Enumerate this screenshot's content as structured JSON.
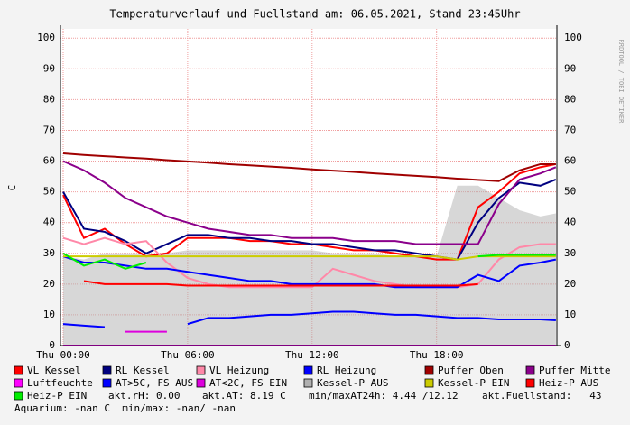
{
  "chart_data": {
    "type": "line",
    "title": "Temperaturverlauf und Fuellstand am: 06.05.2021, Stand 23:45Uhr",
    "ylabel": "C",
    "watermark": "RRDTOOL / TOBI OETIKER",
    "x": [
      0,
      1,
      2,
      3,
      4,
      5,
      6,
      7,
      8,
      9,
      10,
      11,
      12,
      13,
      14,
      15,
      16,
      17,
      18,
      19,
      20,
      21,
      22,
      23,
      23.75
    ],
    "xlim": [
      -0.13,
      23.8
    ],
    "xticks": [
      {
        "value": 0,
        "label": "Thu 00:00"
      },
      {
        "value": 6,
        "label": "Thu 06:00"
      },
      {
        "value": 12,
        "label": "Thu 12:00"
      },
      {
        "value": 18,
        "label": "Thu 18:00"
      }
    ],
    "ylim": [
      0,
      103
    ],
    "yticks": [
      0,
      10,
      20,
      30,
      40,
      50,
      60,
      70,
      80,
      90,
      100
    ],
    "grid": true,
    "series": [
      {
        "name": "VL Kessel",
        "color": "#ff0000",
        "values": [
          49,
          35,
          38,
          33,
          29,
          30,
          35,
          35,
          35,
          34,
          34,
          33,
          33,
          32,
          31,
          31,
          30,
          29,
          28,
          28,
          45,
          50,
          56,
          58,
          59
        ]
      },
      {
        "name": "RL Kessel",
        "color": "#000080",
        "values": [
          50,
          38,
          37,
          34,
          30,
          33,
          36,
          36,
          35,
          35,
          34,
          34,
          33,
          33,
          32,
          31,
          31,
          30,
          29,
          28,
          40,
          48,
          53,
          52,
          54
        ]
      },
      {
        "name": "VL Heizung",
        "color": "#ff88a8",
        "values": [
          35,
          33,
          35,
          33,
          34,
          27,
          22,
          20,
          19,
          19,
          19,
          19,
          19,
          25,
          23,
          21,
          20,
          19,
          19,
          19,
          20,
          28,
          32,
          33,
          33
        ]
      },
      {
        "name": "RL Heizung",
        "color": "#0000ff",
        "values": [
          29,
          27,
          27,
          26,
          25,
          25,
          24,
          23,
          22,
          21,
          21,
          20,
          20,
          20,
          20,
          20,
          19,
          19,
          19,
          19,
          23,
          21,
          26,
          27,
          28
        ]
      },
      {
        "name": "Puffer Oben",
        "color": "#a00000",
        "values": [
          62.5,
          62,
          61.6,
          61.2,
          60.8,
          60.3,
          59.9,
          59.5,
          59,
          58.6,
          58.2,
          57.8,
          57.3,
          56.9,
          56.5,
          56,
          55.6,
          55.2,
          54.8,
          54.3,
          53.9,
          53.5,
          57,
          59,
          59
        ]
      },
      {
        "name": "Puffer Mitte",
        "color": "#8b008b",
        "values": [
          60,
          57,
          53,
          48,
          45,
          42,
          40,
          38,
          37,
          36,
          36,
          35,
          35,
          35,
          34,
          34,
          34,
          33,
          33,
          33,
          33,
          46,
          54,
          56,
          58
        ]
      },
      {
        "name": "Luftfeuchte",
        "color": "#ff00ff",
        "values": [
          0,
          0,
          0,
          0,
          0,
          0,
          0,
          0,
          0,
          0,
          0,
          0,
          0,
          0,
          0,
          0,
          0,
          0,
          0,
          0,
          0,
          0,
          0,
          0,
          0
        ]
      },
      {
        "name": "AT>5C, FS AUS",
        "color": "#0000ff",
        "values": [
          7,
          6.5,
          6,
          null,
          null,
          null,
          7,
          9,
          9,
          9.5,
          10,
          10,
          10.5,
          11,
          11,
          10.5,
          10,
          10,
          9.5,
          9,
          9,
          8.5,
          8.5,
          8.5,
          8.2
        ]
      },
      {
        "name": "AT<2C, FS EIN",
        "color": "#dd00dd",
        "values": [
          null,
          null,
          null,
          4.5,
          4.5,
          4.5,
          null,
          null,
          null,
          null,
          null,
          null,
          null,
          null,
          null,
          null,
          null,
          null,
          null,
          null,
          null,
          null,
          null,
          null,
          null
        ]
      },
      {
        "name": "Kessel-P AUS",
        "color": "#b0b0b0",
        "fill": true,
        "values": [
          29,
          28,
          30,
          30,
          30,
          30,
          31,
          31,
          31,
          31,
          31,
          31,
          31,
          30,
          30,
          30,
          29,
          29,
          29,
          52,
          52,
          48,
          44,
          42,
          43
        ]
      },
      {
        "name": "Kessel-P EIN",
        "color": "#cccc00",
        "values": [
          29,
          29,
          29,
          29,
          29,
          29,
          29,
          29,
          29,
          29,
          29,
          29,
          29,
          29,
          29,
          29,
          29,
          29,
          29,
          28,
          29,
          29,
          29,
          29,
          29
        ]
      },
      {
        "name": "Heiz-P AUS",
        "color": "#ff0000",
        "values": [
          null,
          21,
          20,
          20,
          20,
          20,
          19.5,
          19.5,
          19.5,
          19.5,
          19.5,
          19.5,
          19.5,
          19.5,
          19.5,
          19.5,
          19.5,
          19.5,
          19.5,
          19.5,
          20,
          null,
          null,
          null,
          null
        ]
      },
      {
        "name": "Heiz-P EIN",
        "color": "#00ee00",
        "values": [
          30,
          26,
          28,
          25,
          27,
          null,
          null,
          null,
          null,
          null,
          null,
          null,
          null,
          null,
          null,
          null,
          null,
          null,
          null,
          null,
          29,
          29.5,
          29.5,
          29.5,
          29.5
        ]
      }
    ],
    "annotations": [
      "akt.rH: 0.00",
      "akt.AT: 8.19 C",
      "min/maxAT24h: 4.44 /12.12",
      "akt.Fuellstand:   43",
      "Aquarium: -nan C  min/max: -nan/ -nan"
    ]
  }
}
